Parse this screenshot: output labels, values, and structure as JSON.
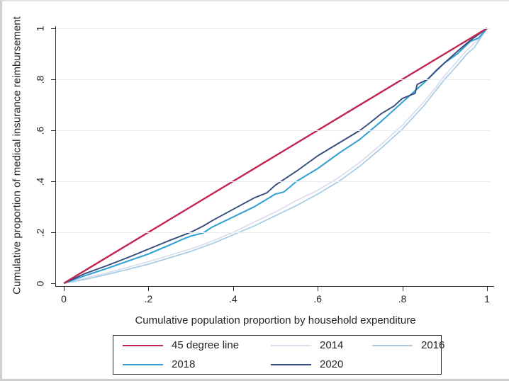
{
  "figure": {
    "background": "#ffffff",
    "frame_color": "#cfcfcf"
  },
  "chart_data": {
    "type": "line",
    "title": "",
    "xlabel": "Cumulative population proportion by household expenditure",
    "ylabel": "Cumulative proportion of medical insurance reimbursement",
    "xlim": [
      0,
      1
    ],
    "ylim": [
      0,
      1
    ],
    "grid": "horizontal",
    "grid_color": "#e9ebee",
    "axis_color": "#2f2f2f",
    "text_color": "#262626",
    "x_ticks": {
      "values": [
        0,
        0.2,
        0.4,
        0.6,
        0.8,
        1
      ],
      "labels": [
        "0",
        ".2",
        ".4",
        ".6",
        ".8",
        "1"
      ]
    },
    "y_ticks": {
      "values": [
        0,
        0.2,
        0.4,
        0.6,
        0.8,
        1
      ],
      "labels": [
        "0",
        ".2",
        ".4",
        ".6",
        ".8",
        "1"
      ]
    },
    "legend": {
      "position": "bottom",
      "border": true,
      "columns": 3,
      "order": [
        "45 degree line",
        "2014",
        "2016",
        "2018",
        "2020"
      ]
    },
    "series": [
      {
        "name": "45 degree line",
        "color": "#c22550",
        "width": 2.4,
        "z": 5,
        "points": [
          [
            0,
            0
          ],
          [
            1,
            1
          ]
        ]
      },
      {
        "name": "2014",
        "color": "#d9dded",
        "width": 1.7,
        "z": 1,
        "points": [
          [
            0,
            0
          ],
          [
            0.05,
            0.02
          ],
          [
            0.1,
            0.04
          ],
          [
            0.15,
            0.062
          ],
          [
            0.2,
            0.085
          ],
          [
            0.25,
            0.11
          ],
          [
            0.3,
            0.135
          ],
          [
            0.33,
            0.152
          ],
          [
            0.35,
            0.165
          ],
          [
            0.4,
            0.2
          ],
          [
            0.45,
            0.24
          ],
          [
            0.5,
            0.28
          ],
          [
            0.55,
            0.325
          ],
          [
            0.6,
            0.365
          ],
          [
            0.65,
            0.415
          ],
          [
            0.7,
            0.475
          ],
          [
            0.75,
            0.545
          ],
          [
            0.8,
            0.62
          ],
          [
            0.85,
            0.71
          ],
          [
            0.88,
            0.77
          ],
          [
            0.9,
            0.815
          ],
          [
            0.95,
            0.91
          ],
          [
            0.98,
            0.958
          ],
          [
            1,
            1
          ]
        ]
      },
      {
        "name": "2016",
        "color": "#a6cbe2",
        "width": 1.7,
        "z": 2,
        "points": [
          [
            0,
            0
          ],
          [
            0.05,
            0.015
          ],
          [
            0.1,
            0.034
          ],
          [
            0.15,
            0.054
          ],
          [
            0.2,
            0.075
          ],
          [
            0.25,
            0.1
          ],
          [
            0.3,
            0.125
          ],
          [
            0.35,
            0.155
          ],
          [
            0.4,
            0.19
          ],
          [
            0.45,
            0.225
          ],
          [
            0.5,
            0.265
          ],
          [
            0.55,
            0.305
          ],
          [
            0.6,
            0.35
          ],
          [
            0.65,
            0.4
          ],
          [
            0.7,
            0.46
          ],
          [
            0.75,
            0.53
          ],
          [
            0.8,
            0.605
          ],
          [
            0.85,
            0.695
          ],
          [
            0.9,
            0.8
          ],
          [
            0.93,
            0.855
          ],
          [
            0.95,
            0.895
          ],
          [
            0.97,
            0.925
          ],
          [
            1,
            1
          ]
        ]
      },
      {
        "name": "2018",
        "color": "#36a1d3",
        "width": 2.1,
        "z": 3,
        "points": [
          [
            0,
            0
          ],
          [
            0.05,
            0.03
          ],
          [
            0.1,
            0.057
          ],
          [
            0.15,
            0.086
          ],
          [
            0.2,
            0.115
          ],
          [
            0.25,
            0.15
          ],
          [
            0.28,
            0.172
          ],
          [
            0.3,
            0.185
          ],
          [
            0.33,
            0.198
          ],
          [
            0.35,
            0.22
          ],
          [
            0.4,
            0.26
          ],
          [
            0.45,
            0.3
          ],
          [
            0.5,
            0.35
          ],
          [
            0.52,
            0.358
          ],
          [
            0.55,
            0.4
          ],
          [
            0.6,
            0.45
          ],
          [
            0.65,
            0.51
          ],
          [
            0.7,
            0.565
          ],
          [
            0.75,
            0.635
          ],
          [
            0.8,
            0.71
          ],
          [
            0.85,
            0.785
          ],
          [
            0.9,
            0.865
          ],
          [
            0.93,
            0.9
          ],
          [
            0.96,
            0.948
          ],
          [
            0.98,
            0.962
          ],
          [
            1,
            1
          ]
        ]
      },
      {
        "name": "2020",
        "color": "#374b7d",
        "width": 1.9,
        "z": 4,
        "points": [
          [
            0,
            0
          ],
          [
            0.05,
            0.038
          ],
          [
            0.1,
            0.068
          ],
          [
            0.15,
            0.1
          ],
          [
            0.2,
            0.134
          ],
          [
            0.25,
            0.168
          ],
          [
            0.3,
            0.2
          ],
          [
            0.33,
            0.225
          ],
          [
            0.35,
            0.245
          ],
          [
            0.4,
            0.29
          ],
          [
            0.45,
            0.335
          ],
          [
            0.48,
            0.355
          ],
          [
            0.5,
            0.385
          ],
          [
            0.55,
            0.44
          ],
          [
            0.6,
            0.5
          ],
          [
            0.65,
            0.55
          ],
          [
            0.7,
            0.6
          ],
          [
            0.72,
            0.625
          ],
          [
            0.75,
            0.665
          ],
          [
            0.78,
            0.695
          ],
          [
            0.8,
            0.725
          ],
          [
            0.83,
            0.745
          ],
          [
            0.835,
            0.78
          ],
          [
            0.86,
            0.8
          ],
          [
            0.88,
            0.835
          ],
          [
            0.9,
            0.865
          ],
          [
            0.93,
            0.91
          ],
          [
            0.96,
            0.952
          ],
          [
            1,
            1
          ]
        ]
      }
    ]
  }
}
